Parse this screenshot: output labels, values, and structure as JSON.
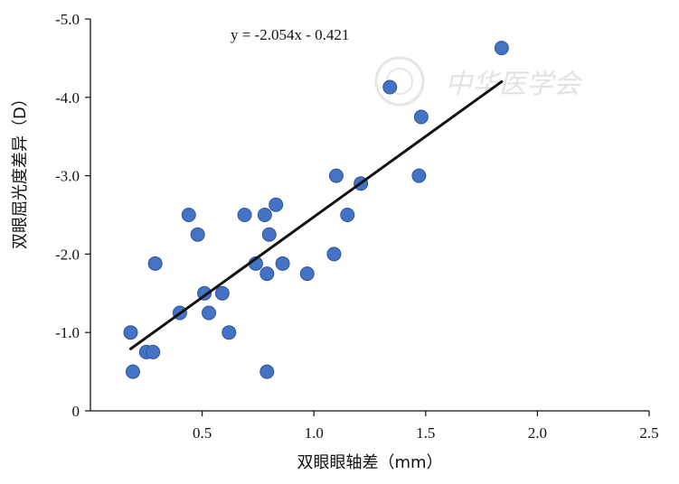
{
  "chart_data": {
    "type": "scatter",
    "xlabel": "双眼眼轴差（mm）",
    "ylabel": "双眼屈光度差异（D）",
    "xlim": [
      0,
      2.5
    ],
    "ylim": [
      0,
      -5.0
    ],
    "x_ticks": [
      "0.5",
      "1.0",
      "1.5",
      "2.0",
      "2.5"
    ],
    "x_tick_values": [
      0.5,
      1.0,
      1.5,
      2.0,
      2.5
    ],
    "y_ticks": [
      "0",
      "-1.0",
      "-2.0",
      "-3.0",
      "-4.0",
      "-5.0"
    ],
    "y_tick_values": [
      0,
      -1.0,
      -2.0,
      -3.0,
      -4.0,
      -5.0
    ],
    "grid": false,
    "legend": "none",
    "point_color": "#4472c4",
    "line_color": "#111111",
    "annotation": "y = -2.054x - 0.421",
    "watermark": "中华医学会",
    "trendline": {
      "slope": -2.054,
      "intercept": -0.421,
      "x_range": [
        0.18,
        1.84
      ]
    },
    "points": [
      {
        "x": 0.18,
        "y": -1.0
      },
      {
        "x": 0.19,
        "y": -0.5
      },
      {
        "x": 0.25,
        "y": -0.75
      },
      {
        "x": 0.28,
        "y": -0.75
      },
      {
        "x": 0.29,
        "y": -1.88
      },
      {
        "x": 0.4,
        "y": -1.25
      },
      {
        "x": 0.44,
        "y": -2.5
      },
      {
        "x": 0.48,
        "y": -2.25
      },
      {
        "x": 0.51,
        "y": -1.5
      },
      {
        "x": 0.53,
        "y": -1.25
      },
      {
        "x": 0.59,
        "y": -1.5
      },
      {
        "x": 0.62,
        "y": -1.0
      },
      {
        "x": 0.69,
        "y": -2.5
      },
      {
        "x": 0.74,
        "y": -1.88
      },
      {
        "x": 0.78,
        "y": -2.5
      },
      {
        "x": 0.79,
        "y": -1.75
      },
      {
        "x": 0.79,
        "y": -0.5
      },
      {
        "x": 0.8,
        "y": -2.25
      },
      {
        "x": 0.83,
        "y": -2.63
      },
      {
        "x": 0.86,
        "y": -1.88
      },
      {
        "x": 0.97,
        "y": -1.75
      },
      {
        "x": 1.09,
        "y": -2.0
      },
      {
        "x": 1.1,
        "y": -3.0
      },
      {
        "x": 1.15,
        "y": -2.5
      },
      {
        "x": 1.21,
        "y": -2.9
      },
      {
        "x": 1.34,
        "y": -4.13
      },
      {
        "x": 1.47,
        "y": -3.0
      },
      {
        "x": 1.48,
        "y": -3.75
      },
      {
        "x": 1.84,
        "y": -4.63
      }
    ]
  }
}
